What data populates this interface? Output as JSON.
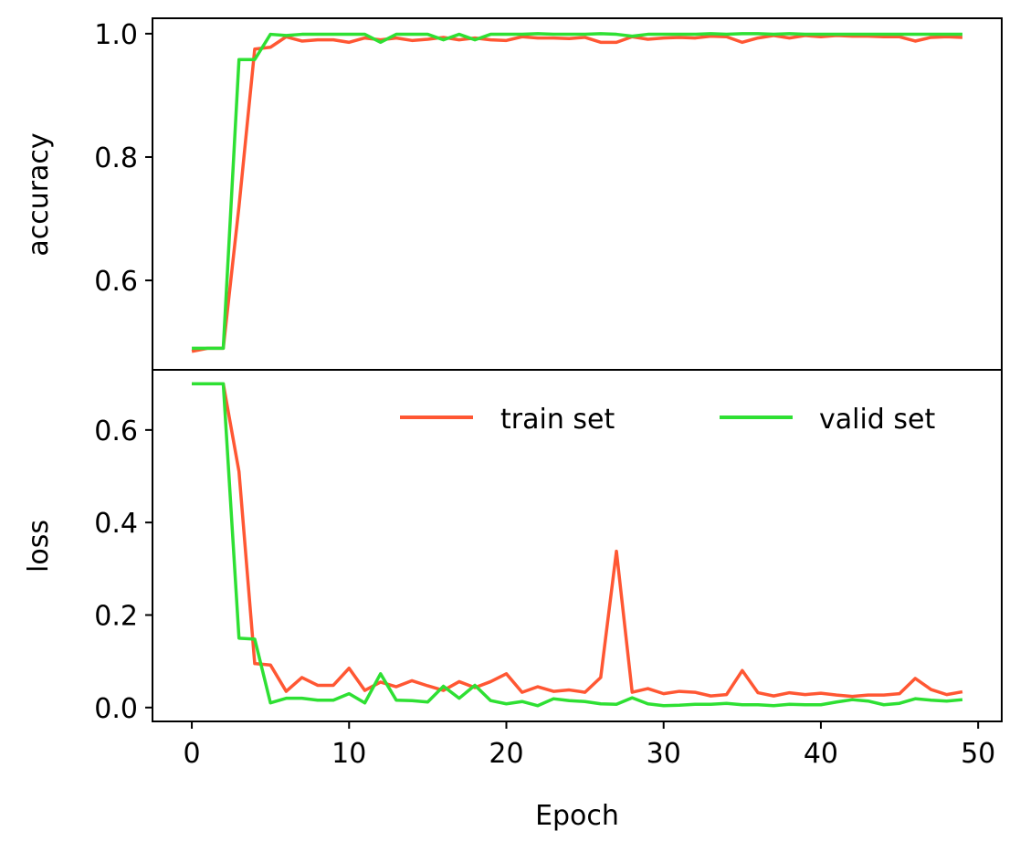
{
  "chart_data": {
    "type": "line",
    "x": [
      0,
      1,
      2,
      3,
      4,
      5,
      6,
      7,
      8,
      9,
      10,
      11,
      12,
      13,
      14,
      15,
      16,
      17,
      18,
      19,
      20,
      21,
      22,
      23,
      24,
      25,
      26,
      27,
      28,
      29,
      30,
      31,
      32,
      33,
      34,
      35,
      36,
      37,
      38,
      39,
      40,
      41,
      42,
      43,
      44,
      45,
      46,
      47,
      48,
      49
    ],
    "xlabel": "Epoch",
    "xticks": [
      0,
      10,
      20,
      30,
      40,
      50
    ],
    "xlim": [
      -2.5,
      51.5
    ],
    "legend": {
      "placement": "top-right",
      "columns": 2
    },
    "colors": {
      "train": "#ff5733",
      "valid": "#2ee033"
    },
    "panels": [
      {
        "ylabel": "accuracy",
        "ylim": [
          0.455,
          1.025
        ],
        "yticks": [
          {
            "value": 0.6,
            "label": "0.6"
          },
          {
            "value": 0.8,
            "label": "0.8"
          },
          {
            "value": 1.0,
            "label": "1.0"
          }
        ],
        "series": [
          {
            "name": "train set",
            "color": "#ff5733",
            "values": [
              0.485,
              0.49,
              0.49,
              0.72,
              0.975,
              0.978,
              0.995,
              0.988,
              0.99,
              0.99,
              0.986,
              0.993,
              0.99,
              0.993,
              0.989,
              0.991,
              0.994,
              0.99,
              0.993,
              0.99,
              0.989,
              0.995,
              0.993,
              0.993,
              0.992,
              0.994,
              0.986,
              0.986,
              0.995,
              0.991,
              0.993,
              0.994,
              0.993,
              0.996,
              0.995,
              0.986,
              0.993,
              0.997,
              0.993,
              0.997,
              0.995,
              0.997,
              0.996,
              0.996,
              0.995,
              0.995,
              0.988,
              0.994,
              0.995,
              0.994
            ]
          },
          {
            "name": "valid set",
            "color": "#2ee033",
            "values": [
              0.49,
              0.49,
              0.49,
              0.958,
              0.958,
              0.999,
              0.997,
              0.999,
              0.999,
              0.999,
              0.999,
              0.999,
              0.986,
              0.999,
              0.999,
              0.999,
              0.99,
              0.999,
              0.99,
              0.999,
              0.999,
              0.999,
              1.0,
              0.999,
              0.999,
              0.999,
              1.0,
              0.999,
              0.996,
              0.999,
              0.999,
              0.999,
              0.999,
              1.0,
              0.999,
              1.0,
              1.0,
              0.999,
              1.0,
              0.999,
              0.999,
              0.999,
              0.999,
              0.999,
              0.999,
              0.999,
              0.999,
              0.999,
              0.999,
              0.999
            ]
          }
        ]
      },
      {
        "ylabel": "loss",
        "ylim": [
          -0.03,
          0.73
        ],
        "yticks": [
          {
            "value": 0.0,
            "label": "0.0"
          },
          {
            "value": 0.2,
            "label": "0.2"
          },
          {
            "value": 0.4,
            "label": "0.4"
          },
          {
            "value": 0.6,
            "label": "0.6"
          }
        ],
        "series": [
          {
            "name": "train set",
            "color": "#ff5733",
            "values": [
              0.7,
              0.7,
              0.7,
              0.51,
              0.095,
              0.092,
              0.035,
              0.065,
              0.048,
              0.048,
              0.085,
              0.037,
              0.055,
              0.045,
              0.058,
              0.047,
              0.037,
              0.056,
              0.043,
              0.056,
              0.073,
              0.033,
              0.045,
              0.035,
              0.038,
              0.033,
              0.065,
              0.338,
              0.033,
              0.041,
              0.03,
              0.035,
              0.033,
              0.025,
              0.028,
              0.08,
              0.032,
              0.025,
              0.032,
              0.028,
              0.031,
              0.027,
              0.024,
              0.027,
              0.027,
              0.03,
              0.063,
              0.039,
              0.028,
              0.034
            ]
          },
          {
            "name": "valid set",
            "color": "#2ee033",
            "values": [
              0.7,
              0.7,
              0.7,
              0.15,
              0.148,
              0.01,
              0.02,
              0.02,
              0.016,
              0.016,
              0.03,
              0.01,
              0.073,
              0.016,
              0.015,
              0.012,
              0.046,
              0.02,
              0.048,
              0.015,
              0.008,
              0.013,
              0.004,
              0.019,
              0.015,
              0.013,
              0.008,
              0.007,
              0.021,
              0.008,
              0.004,
              0.005,
              0.007,
              0.007,
              0.009,
              0.006,
              0.006,
              0.004,
              0.007,
              0.006,
              0.006,
              0.012,
              0.017,
              0.014,
              0.006,
              0.009,
              0.019,
              0.016,
              0.014,
              0.017
            ]
          }
        ]
      }
    ]
  }
}
